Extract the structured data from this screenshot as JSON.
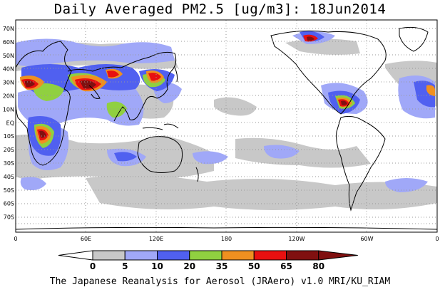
{
  "title": "Daily Averaged PM2.5 [ug/m3]: 18Jun2014",
  "footer": "The Japanese Reanalysis for Aerosol (JRAero) v1.0 MRI/KU_RIAM",
  "lat_labels": [
    "70N",
    "60N",
    "50N",
    "40N",
    "30N",
    "20N",
    "10N",
    "EQ",
    "10S",
    "20S",
    "30S",
    "40S",
    "50S",
    "60S",
    "70S"
  ],
  "lon_labels": [
    "0",
    "60E",
    "120E",
    "180",
    "120W",
    "60W",
    "0"
  ],
  "colorbar": {
    "levels": [
      "0",
      "5",
      "10",
      "20",
      "35",
      "50",
      "65",
      "80"
    ],
    "colors": [
      "#ffffff",
      "#c8c8c8",
      "#a0a8f8",
      "#5060f0",
      "#90d040",
      "#f09020",
      "#e81010",
      "#801010"
    ]
  },
  "colors": {
    "coast": "#000000",
    "grid": "#999999",
    "background": "#ffffff"
  }
}
